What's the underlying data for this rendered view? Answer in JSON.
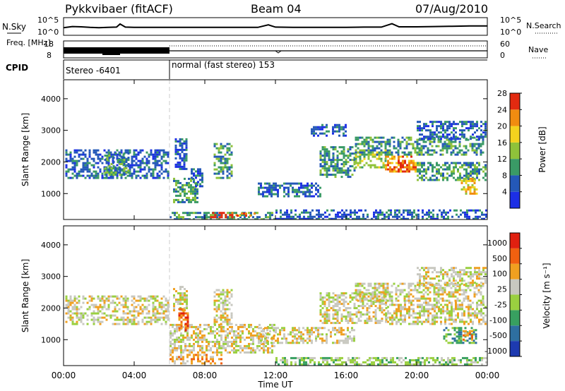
{
  "header": {
    "title": "Pykkvibaer (fitACF)",
    "beam": "Beam 04",
    "date": "07/Aug/2010"
  },
  "chart_data": [
    {
      "type": "line",
      "name": "noise-panel",
      "left_label": "N.Sky",
      "right_label": "N.Search",
      "left_ticks": [
        "10^5",
        "10^0"
      ],
      "right_ticks": [
        "10^5",
        "10^0"
      ],
      "series": [
        {
          "name": "N.Sky",
          "x": [
            0,
            0.5,
            1,
            1.5,
            2,
            2.5,
            3,
            3.2,
            3.5,
            4,
            5,
            6,
            7,
            8,
            9,
            10,
            11,
            11.6,
            12,
            13,
            14,
            15,
            16,
            17,
            18,
            18.6,
            19,
            20,
            21,
            22,
            23,
            24
          ],
          "y": [
            2.2,
            2.6,
            2.5,
            2.3,
            2.2,
            2.3,
            2.4,
            3.5,
            2.4,
            2.3,
            2.3,
            2.3,
            2.3,
            2.3,
            2.3,
            2.3,
            2.3,
            3.2,
            2.4,
            2.3,
            2.3,
            2.3,
            2.3,
            2.4,
            2.4,
            3.6,
            2.5,
            2.5,
            2.6,
            2.7,
            2.8,
            2.8
          ]
        }
      ]
    },
    {
      "type": "line",
      "name": "frequency-panel",
      "left_label": "Freq. [MHz]",
      "right_label": "Nave",
      "left_ticks": [
        "18",
        "8"
      ],
      "right_ticks": [
        "60",
        "0"
      ],
      "freq_mhz_stereo": 11.2,
      "nave_normal": 23
    },
    {
      "type": "table",
      "name": "cpid-panel",
      "label": "CPID",
      "segments": [
        {
          "label": "Stereo -6401",
          "start": 0,
          "end": 6
        },
        {
          "label": "normal (fast stereo) 153",
          "start": 6,
          "end": 24
        }
      ]
    },
    {
      "type": "heatmap",
      "name": "power-panel",
      "ylabel": "Slant Range [km]",
      "y_ticks": [
        1000,
        2000,
        3000,
        4000
      ],
      "ylim": [
        180,
        4600
      ],
      "colorbar": {
        "label": "Power [dB]",
        "ticks": [
          "4",
          "8",
          "12",
          "16",
          "20",
          "24",
          "28"
        ],
        "colors": [
          "#1c2fe6",
          "#2458b8",
          "#3a9a66",
          "#8fc23a",
          "#f3d21e",
          "#f08c10",
          "#e22a10"
        ]
      },
      "regions": [
        {
          "t0": 0.1,
          "t1": 5.9,
          "r0": 1480,
          "r1": 2400,
          "level": 1
        },
        {
          "t0": 2.3,
          "t1": 3.7,
          "r0": 1600,
          "r1": 2300,
          "level": 2
        },
        {
          "t0": 6.0,
          "t1": 12.0,
          "r0": 200,
          "r1": 420,
          "level": 2
        },
        {
          "t0": 8.3,
          "t1": 9.8,
          "r0": 260,
          "r1": 420,
          "level": 6
        },
        {
          "t0": 9.8,
          "t1": 11.0,
          "r0": 280,
          "r1": 400,
          "level": 5
        },
        {
          "t0": 6.2,
          "t1": 7.6,
          "r0": 700,
          "r1": 1500,
          "level": 2
        },
        {
          "t0": 7.2,
          "t1": 7.9,
          "r0": 1200,
          "r1": 1800,
          "level": 1
        },
        {
          "t0": 6.3,
          "t1": 7.0,
          "r0": 1800,
          "r1": 2750,
          "level": 1
        },
        {
          "t0": 8.5,
          "t1": 9.5,
          "r0": 1500,
          "r1": 2600,
          "level": 2
        },
        {
          "t0": 11.0,
          "t1": 14.5,
          "r0": 900,
          "r1": 1350,
          "level": 1
        },
        {
          "t0": 14.5,
          "t1": 16.5,
          "r0": 1500,
          "r1": 2500,
          "level": 2
        },
        {
          "t0": 16.5,
          "t1": 18.3,
          "r0": 1800,
          "r1": 2400,
          "level": 3
        },
        {
          "t0": 18.2,
          "t1": 20.0,
          "r0": 1700,
          "r1": 2200,
          "level": 5
        },
        {
          "t0": 18.8,
          "t1": 19.6,
          "r0": 1700,
          "r1": 2000,
          "level": 6
        },
        {
          "t0": 16.5,
          "t1": 23.8,
          "r0": 2200,
          "r1": 2800,
          "level": 2
        },
        {
          "t0": 20.0,
          "t1": 23.9,
          "r0": 2700,
          "r1": 3300,
          "level": 1
        },
        {
          "t0": 20.0,
          "t1": 23.9,
          "r0": 1400,
          "r1": 2000,
          "level": 2
        },
        {
          "t0": 12.0,
          "t1": 23.9,
          "r0": 200,
          "r1": 500,
          "level": 1
        },
        {
          "t0": 22.5,
          "t1": 23.4,
          "r0": 1000,
          "r1": 1500,
          "level": 4
        },
        {
          "t0": 14.0,
          "t1": 16.0,
          "r0": 2800,
          "r1": 3200,
          "level": 1
        }
      ]
    },
    {
      "type": "heatmap",
      "name": "velocity-panel",
      "ylabel": "Slant Range [km]",
      "y_ticks": [
        1000,
        2000,
        3000,
        4000
      ],
      "ylim": [
        180,
        4600
      ],
      "colorbar": {
        "label": "Velocity [m s⁻¹]",
        "ticks": [
          "1000",
          "500",
          "100",
          "25",
          "-25",
          "-100",
          "-500",
          "-1000"
        ],
        "colors": [
          "#1d3ab0",
          "#2e6fa0",
          "#38a060",
          "#9ad040",
          "#c8c8c0",
          "#f0a020",
          "#f06010",
          "#e02010"
        ]
      },
      "regions": [
        {
          "t0": 0.1,
          "t1": 5.9,
          "r0": 1480,
          "r1": 2400,
          "level": 4
        },
        {
          "t0": 6.0,
          "t1": 12.0,
          "r0": 600,
          "r1": 1500,
          "level": 4
        },
        {
          "t0": 6.0,
          "t1": 9.0,
          "r0": 250,
          "r1": 550,
          "level": 5
        },
        {
          "t0": 6.2,
          "t1": 7.0,
          "r0": 1900,
          "r1": 2700,
          "level": 4
        },
        {
          "t0": 8.5,
          "t1": 9.5,
          "r0": 1500,
          "r1": 2600,
          "level": 4
        },
        {
          "t0": 11.0,
          "t1": 16.5,
          "r0": 900,
          "r1": 1400,
          "level": 4
        },
        {
          "t0": 14.5,
          "t1": 18.3,
          "r0": 1500,
          "r1": 2500,
          "level": 4
        },
        {
          "t0": 16.5,
          "t1": 23.8,
          "r0": 2200,
          "r1": 2800,
          "level": 4
        },
        {
          "t0": 20.0,
          "t1": 23.9,
          "r0": 2700,
          "r1": 3300,
          "level": 4
        },
        {
          "t0": 18.2,
          "t1": 23.9,
          "r0": 1500,
          "r1": 2200,
          "level": 4
        },
        {
          "t0": 12.0,
          "t1": 23.9,
          "r0": 230,
          "r1": 450,
          "level": 3
        },
        {
          "t0": 21.5,
          "t1": 23.4,
          "r0": 900,
          "r1": 1400,
          "level": 2
        },
        {
          "t0": 22.6,
          "t1": 23.2,
          "r0": 1000,
          "r1": 1300,
          "level": 5
        },
        {
          "t0": 6.5,
          "t1": 7.0,
          "r0": 1300,
          "r1": 2000,
          "level": 6
        }
      ]
    }
  ],
  "xaxis": {
    "label": "Time UT",
    "ticks": [
      "00:00",
      "04:00",
      "08:00",
      "12:00",
      "16:00",
      "20:00",
      "00:00"
    ]
  }
}
